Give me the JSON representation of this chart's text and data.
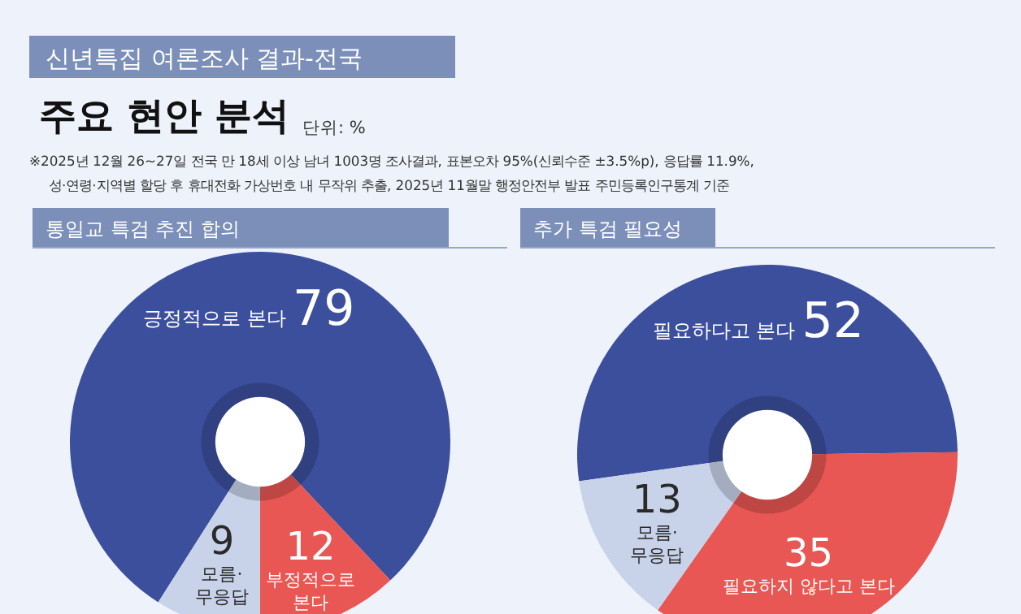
{
  "chart_data": [
    {
      "type": "other",
      "title": "주요 현안 분석",
      "subtitle": "신년특집 여론조사 결과-전국",
      "annotations": [
        "단위: %",
        "※2025년 12월 26~27일 전국 만 18세 이상 남녀 1003명 조사결과, 표본오차 95%(신뢰수준 ±3.5%p), 응답률  11.9%,",
        "성·연령·지역별 할당 후 휴대전화 가상번호 내 무작위 추출,  2025년 11월말 행정안전부 발표 주민등록인구통계 기준"
      ]
    },
    {
      "type": "donut",
      "title": "통일교 특검 추진 합의",
      "categories": [
        "긍정적으로 본다",
        "부정적으로 본다",
        "모름·무응답"
      ],
      "values": [
        79,
        12,
        9
      ],
      "colors": [
        "#3b4f9d",
        "#e85753",
        "#c8d3ea"
      ],
      "data_labels": true
    },
    {
      "type": "donut",
      "title": "추가 특검 필요성",
      "categories": [
        "필요하다고 본다",
        "필요하지 않다고 본다",
        "모름·무응답"
      ],
      "values": [
        52,
        35,
        13
      ],
      "colors": [
        "#3b4f9d",
        "#e85753",
        "#c8d3ea"
      ],
      "data_labels": true
    }
  ]
}
